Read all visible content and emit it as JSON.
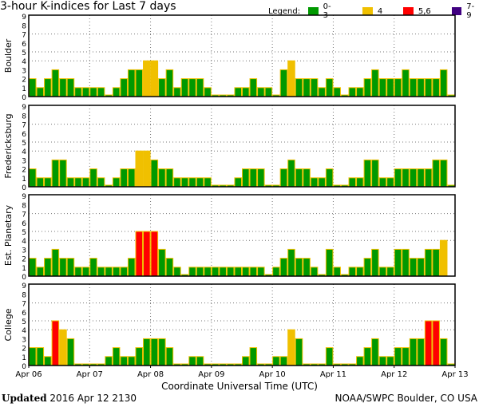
{
  "chart_data": {
    "type": "bar",
    "title": "3-hour K-indices for Last 7 days",
    "xlabel": "Coordinate Universal Time (UTC)",
    "ylim": [
      0,
      9
    ],
    "yticks": [
      "0",
      "1",
      "2",
      "3",
      "4",
      "5",
      "6",
      "7",
      "8",
      "9"
    ],
    "x_tick_labels": [
      "Apr 06",
      "Apr 07",
      "Apr 08",
      "Apr 09",
      "Apr 10",
      "Apr 11",
      "Apr 12",
      "Apr 13"
    ],
    "bars_per_day": 8,
    "legend": [
      {
        "label": "0-3",
        "color": "#009900"
      },
      {
        "label": "4",
        "color": "#f0c000"
      },
      {
        "label": "5,6",
        "color": "#ff0000"
      },
      {
        "label": "7-9",
        "color": "#400080"
      }
    ],
    "legend_title": "Legend:",
    "series": [
      {
        "name": "Boulder",
        "values": [
          2,
          1,
          2,
          3,
          2,
          2,
          1,
          1,
          1,
          1,
          0,
          1,
          2,
          3,
          3,
          4,
          4,
          2,
          3,
          1,
          2,
          2,
          2,
          1,
          0,
          0,
          0,
          1,
          1,
          2,
          1,
          1,
          0,
          3,
          4,
          2,
          2,
          2,
          1,
          2,
          1,
          0,
          1,
          1,
          2,
          3,
          2,
          2,
          2,
          3,
          2,
          2,
          2,
          2,
          3,
          0
        ]
      },
      {
        "name": "Fredericksburg",
        "values": [
          2,
          1,
          1,
          3,
          3,
          1,
          1,
          1,
          2,
          1,
          0,
          1,
          2,
          2,
          4,
          4,
          3,
          2,
          2,
          1,
          1,
          1,
          1,
          1,
          0,
          0,
          0,
          1,
          2,
          2,
          2,
          0,
          0,
          2,
          3,
          2,
          2,
          1,
          1,
          2,
          0,
          0,
          1,
          1,
          3,
          3,
          1,
          1,
          2,
          2,
          2,
          2,
          2,
          3,
          3,
          0
        ]
      },
      {
        "name": "Est. Planetary",
        "values": [
          2,
          1,
          2,
          3,
          2,
          2,
          1,
          1,
          2,
          1,
          1,
          1,
          1,
          2,
          5,
          5,
          5,
          3,
          2,
          1,
          0,
          1,
          1,
          1,
          1,
          1,
          1,
          1,
          1,
          1,
          1,
          0,
          1,
          2,
          3,
          2,
          2,
          1,
          0,
          3,
          1,
          0,
          1,
          1,
          2,
          3,
          1,
          1,
          3,
          3,
          2,
          2,
          3,
          3,
          4,
          null
        ]
      },
      {
        "name": "College",
        "values": [
          2,
          2,
          1,
          5,
          4,
          3,
          0,
          0,
          0,
          0,
          1,
          2,
          1,
          1,
          2,
          3,
          3,
          3,
          2,
          0,
          0,
          1,
          1,
          0,
          0,
          0,
          0,
          0,
          1,
          2,
          0,
          0,
          1,
          1,
          4,
          3,
          0,
          0,
          0,
          2,
          0,
          0,
          0,
          1,
          2,
          3,
          1,
          1,
          2,
          2,
          3,
          3,
          5,
          5,
          3,
          0
        ]
      }
    ]
  },
  "footer": {
    "updated_label": "Updated",
    "updated_value": "2016 Apr 12 2130",
    "credit": "NOAA/SWPC Boulder, CO USA"
  }
}
